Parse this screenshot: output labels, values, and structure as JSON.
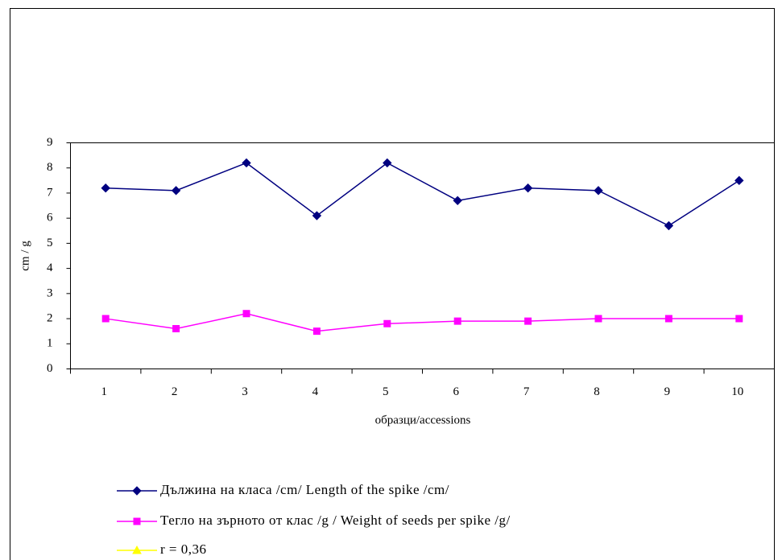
{
  "chart_data": {
    "type": "line",
    "categories": [
      "1",
      "2",
      "3",
      "4",
      "5",
      "6",
      "7",
      "8",
      "9",
      "10"
    ],
    "series": [
      {
        "name": "Дължина на класа /cm/ Length of the spike /cm/",
        "color": "#000080",
        "marker": "diamond",
        "values": [
          7.2,
          7.1,
          8.2,
          6.1,
          8.2,
          6.7,
          7.2,
          7.1,
          5.7,
          7.5
        ]
      },
      {
        "name": "Тегло на зърното от клас /g / Weight of seeds per spike /g/",
        "color": "#ff00ff",
        "marker": "square",
        "values": [
          2.0,
          1.6,
          2.2,
          1.5,
          1.8,
          1.9,
          1.9,
          2.0,
          2.0,
          2.0
        ]
      },
      {
        "name": "r = 0,36",
        "color": "#ffff00",
        "marker": "triangle",
        "values": [
          null,
          null,
          null,
          null,
          null,
          null,
          null,
          null,
          null,
          null
        ]
      }
    ],
    "x_label": "образци/accessions",
    "y_label": "cm / g",
    "ylim": [
      0,
      9
    ],
    "yticks": [
      0,
      1,
      2,
      3,
      4,
      5,
      6,
      7,
      8,
      9
    ],
    "legend": "bottom"
  }
}
